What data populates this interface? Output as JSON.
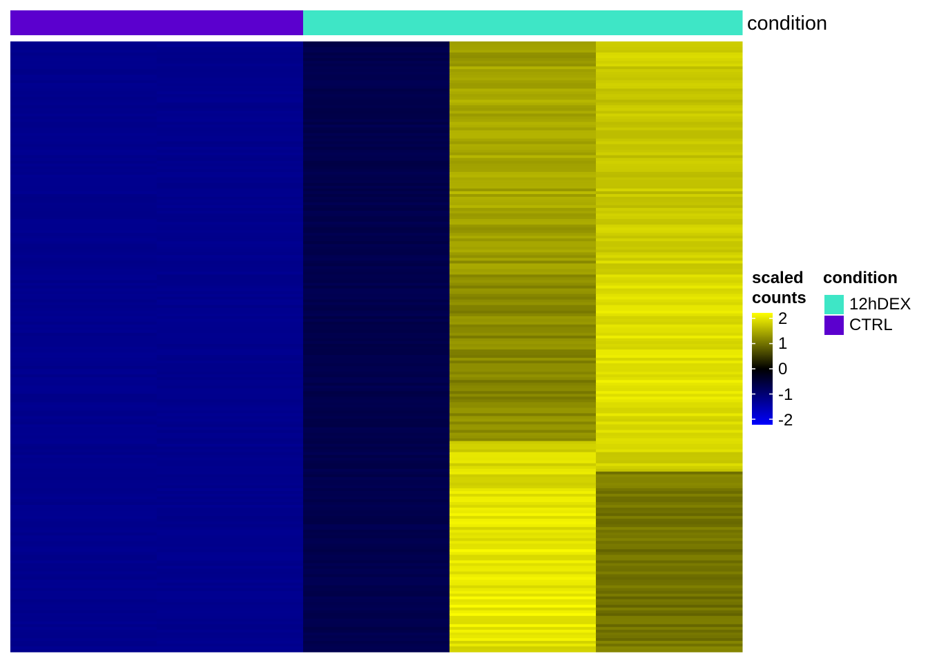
{
  "chart_data": {
    "type": "heatmap",
    "annotation": {
      "name": "condition",
      "samples": [
        "CTRL",
        "CTRL",
        "12hDEX",
        "12hDEX",
        "12hDEX"
      ],
      "colors": {
        "12hDEX": "#3EE6C6",
        "CTRL": "#5B00CE"
      }
    },
    "colorbar": {
      "title_line1": "scaled",
      "title_line2": "counts",
      "ticks": [
        2,
        1,
        0,
        -1,
        -2
      ],
      "tick_labels": [
        "2",
        "1",
        "0",
        "-1",
        "-2"
      ],
      "range": [
        -2,
        2
      ],
      "stops": [
        {
          "value": -2,
          "color": "#0000FF"
        },
        {
          "value": 0,
          "color": "#000000"
        },
        {
          "value": 2,
          "color": "#FFFF00"
        }
      ]
    },
    "legend": {
      "title": "condition",
      "entries": [
        {
          "label": "12hDEX",
          "color": "#3EE6C6"
        },
        {
          "label": "CTRL",
          "color": "#5B00CE"
        }
      ]
    },
    "n_columns": 5,
    "approx_column_means": [
      -1.1,
      -1.1,
      -0.6,
      1.2,
      1.5
    ]
  }
}
